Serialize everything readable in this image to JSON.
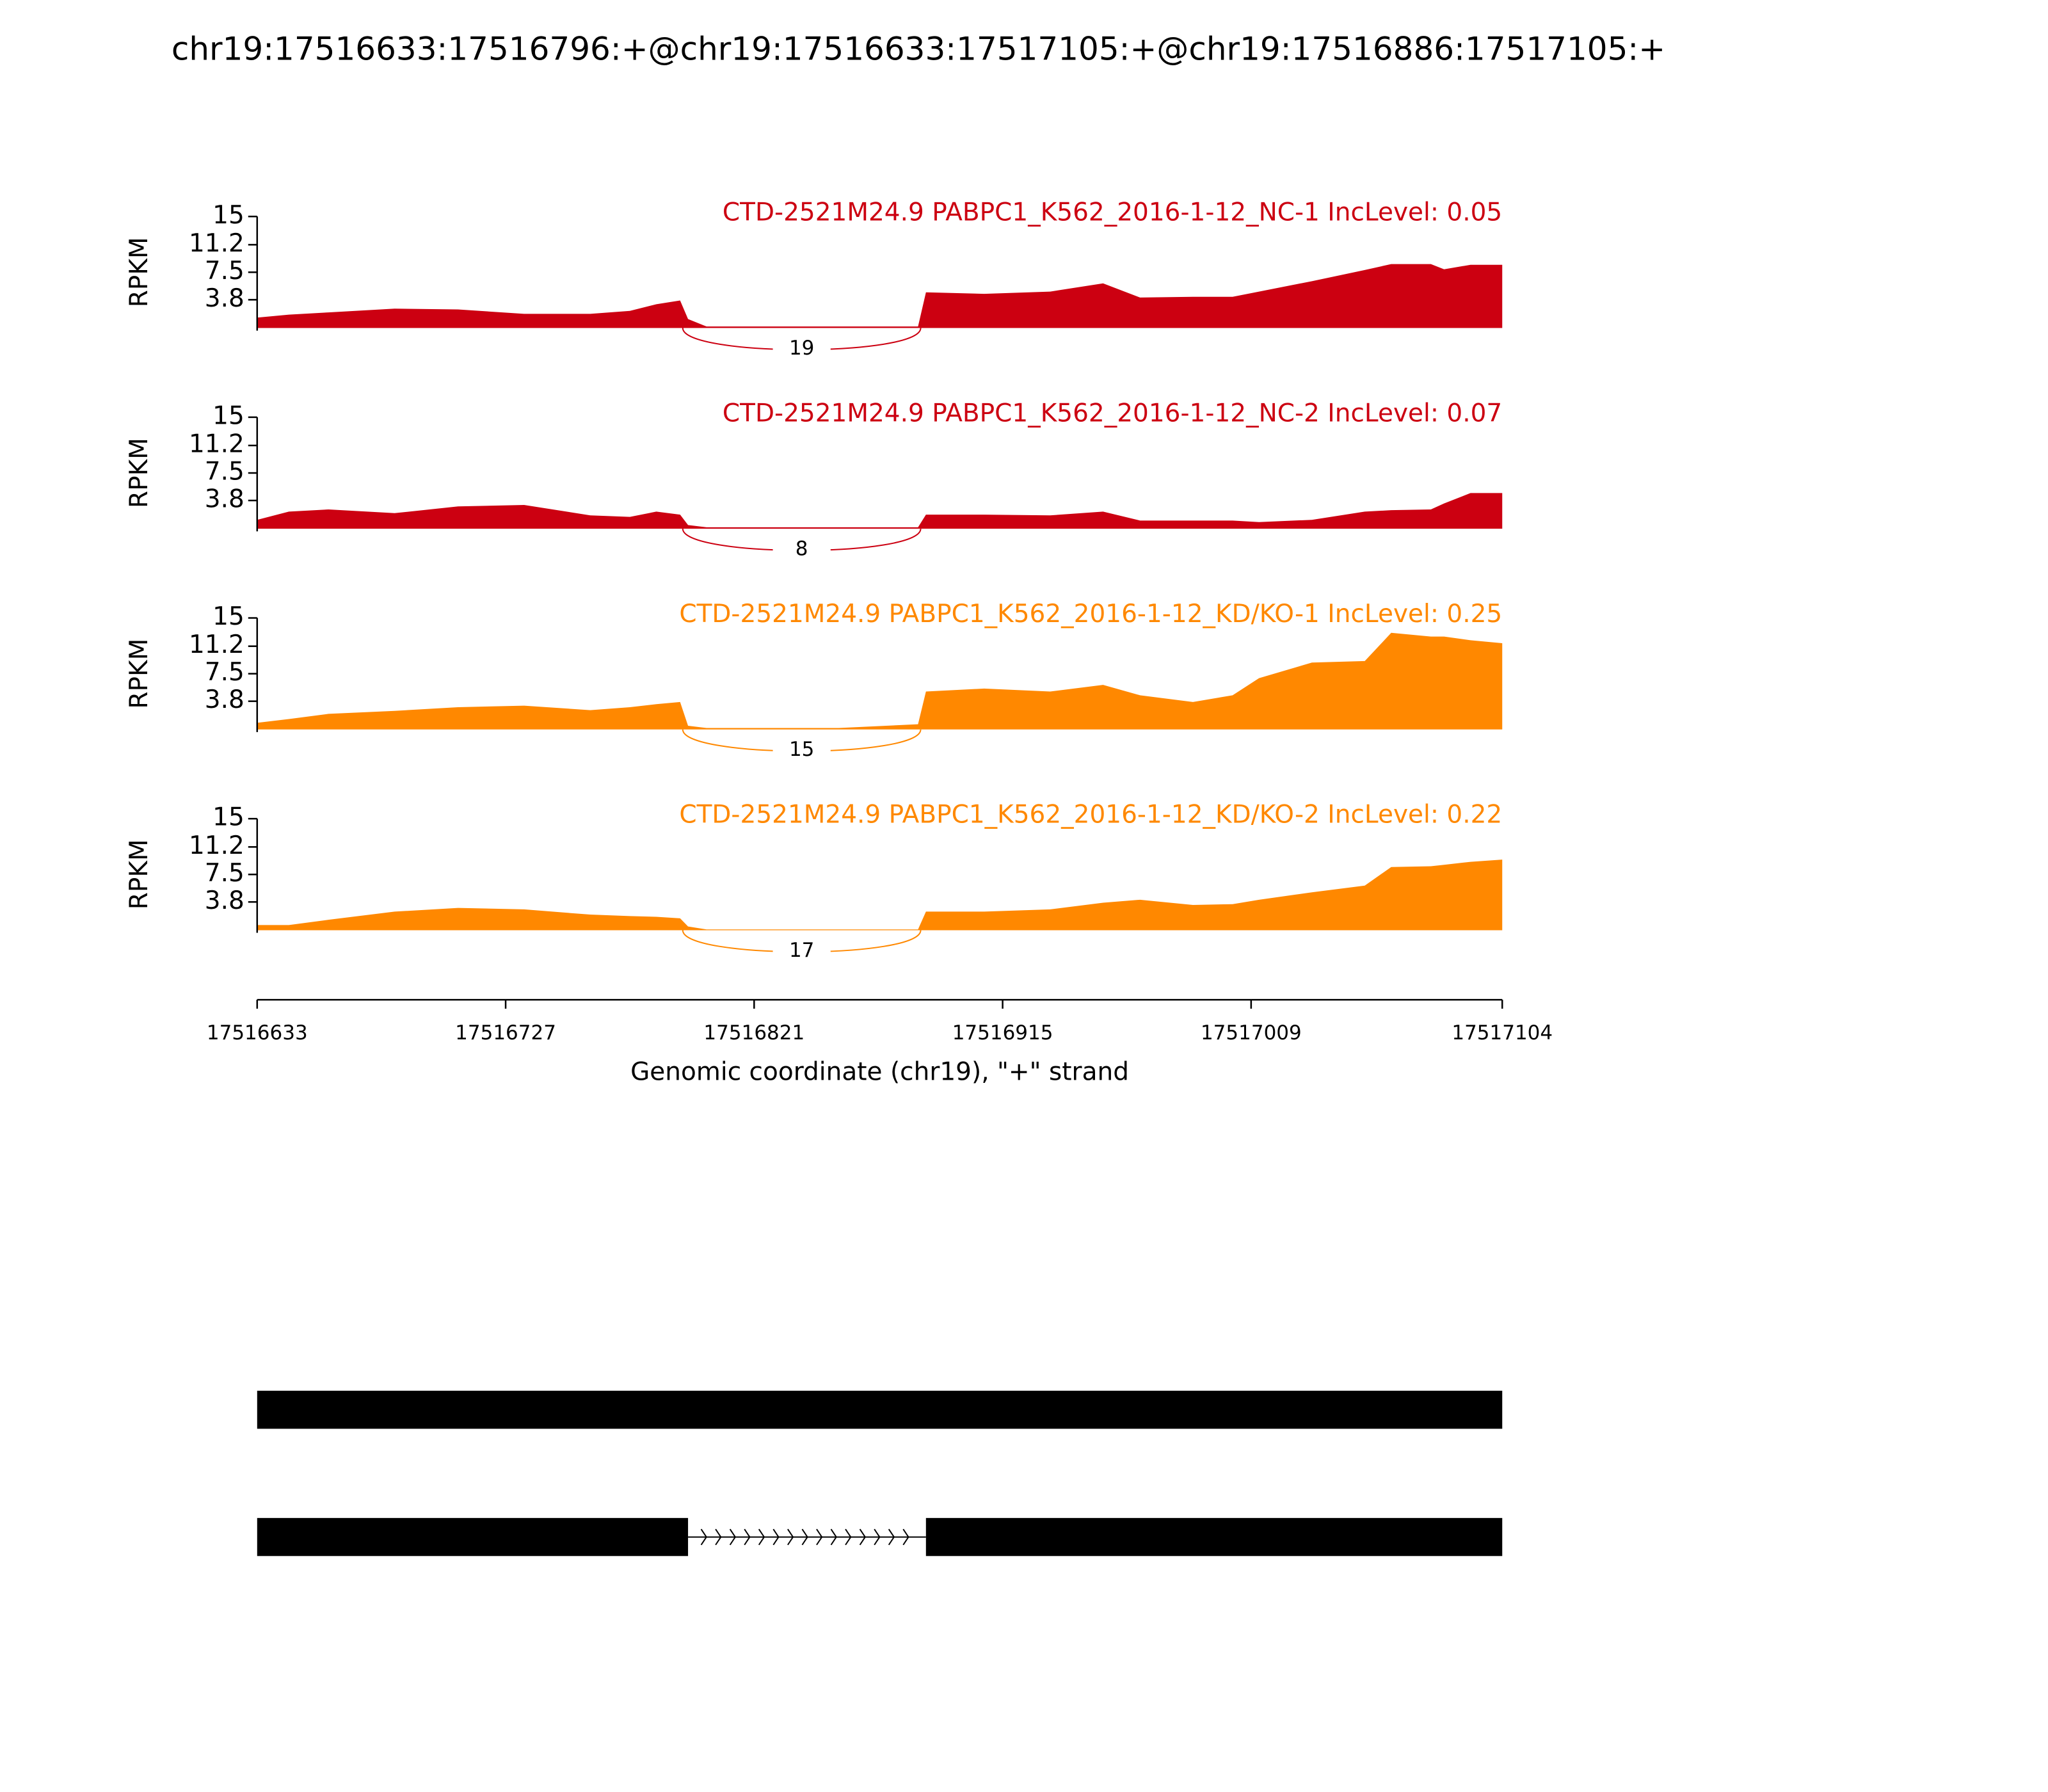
{
  "title": "chr19:17516633:17516796:+@chr19:17516633:17517105:+@chr19:17516886:17517105:+",
  "chart_data": [
    {
      "type": "area",
      "title": "CTD-2521M24.9 PABPC1_K562_2016-1-12_NC-1 IncLevel: 0.05",
      "ylabel": "RPKM",
      "color": "#cc0011",
      "x": [
        17516633,
        17516645,
        17516660,
        17516685,
        17516709,
        17516734,
        17516759,
        17516774,
        17516784,
        17516793,
        17516796,
        17516803,
        17516853,
        17516883,
        17516886,
        17516908,
        17516933,
        17516953,
        17516967,
        17516987,
        17517002,
        17517012,
        17517032,
        17517052,
        17517062,
        17517077,
        17517082,
        17517092,
        17517104
      ],
      "values": [
        1.4,
        1.8,
        2.1,
        2.6,
        2.5,
        1.9,
        1.9,
        2.3,
        3.2,
        3.7,
        1.2,
        0.2,
        0.2,
        0.2,
        4.8,
        4.6,
        4.9,
        6.0,
        4.1,
        4.2,
        4.2,
        4.9,
        6.3,
        7.8,
        8.6,
        8.6,
        7.9,
        8.5,
        8.5
      ],
      "xlim": [
        17516633,
        17517104
      ],
      "ylim": [
        0,
        15
      ],
      "yticks": [
        3.8,
        7.5,
        11.2,
        15
      ],
      "junctions": [
        {
          "start": 17516794,
          "end": 17516884,
          "count": 19
        }
      ]
    },
    {
      "type": "area",
      "title": "CTD-2521M24.9 PABPC1_K562_2016-1-12_NC-2 IncLevel: 0.07",
      "ylabel": "RPKM",
      "color": "#cc0011",
      "x": [
        17516633,
        17516645,
        17516660,
        17516685,
        17516709,
        17516734,
        17516759,
        17516774,
        17516784,
        17516793,
        17516796,
        17516803,
        17516853,
        17516883,
        17516886,
        17516908,
        17516933,
        17516953,
        17516967,
        17516987,
        17517002,
        17517012,
        17517032,
        17517052,
        17517062,
        17517077,
        17517082,
        17517092,
        17517104
      ],
      "values": [
        1.2,
        2.3,
        2.6,
        2.1,
        3.0,
        3.2,
        1.8,
        1.6,
        2.3,
        1.9,
        0.5,
        0.2,
        0.2,
        0.2,
        1.9,
        1.9,
        1.8,
        2.3,
        1.1,
        1.1,
        1.1,
        0.9,
        1.2,
        2.3,
        2.5,
        2.6,
        3.4,
        4.8,
        4.8
      ],
      "xlim": [
        17516633,
        17517104
      ],
      "ylim": [
        0,
        15
      ],
      "yticks": [
        3.8,
        7.5,
        11.2,
        15
      ],
      "junctions": [
        {
          "start": 17516794,
          "end": 17516884,
          "count": 8
        }
      ]
    },
    {
      "type": "area",
      "title": "CTD-2521M24.9 PABPC1_K562_2016-1-12_KD/KO-1 IncLevel: 0.25",
      "ylabel": "RPKM",
      "color": "#ff8800",
      "x": [
        17516633,
        17516645,
        17516660,
        17516685,
        17516709,
        17516734,
        17516759,
        17516774,
        17516784,
        17516793,
        17516796,
        17516803,
        17516853,
        17516883,
        17516886,
        17516908,
        17516933,
        17516953,
        17516967,
        17516987,
        17517002,
        17517012,
        17517032,
        17517052,
        17517062,
        17517077,
        17517082,
        17517092,
        17517104
      ],
      "values": [
        0.9,
        1.4,
        2.1,
        2.5,
        3.0,
        3.2,
        2.6,
        3.0,
        3.4,
        3.7,
        0.5,
        0.2,
        0.2,
        0.7,
        5.1,
        5.5,
        5.1,
        6.0,
        4.6,
        3.7,
        4.6,
        6.9,
        9.0,
        9.2,
        13.0,
        12.5,
        12.5,
        12.0,
        11.6
      ],
      "xlim": [
        17516633,
        17517104
      ],
      "ylim": [
        0,
        15
      ],
      "yticks": [
        3.8,
        7.5,
        11.2,
        15
      ],
      "junctions": [
        {
          "start": 17516794,
          "end": 17516884,
          "count": 15
        }
      ]
    },
    {
      "type": "area",
      "title": "CTD-2521M24.9 PABPC1_K562_2016-1-12_KD/KO-2 IncLevel: 0.22",
      "ylabel": "RPKM",
      "color": "#ff8800",
      "x": [
        17516633,
        17516645,
        17516660,
        17516685,
        17516709,
        17516734,
        17516759,
        17516774,
        17516784,
        17516793,
        17516796,
        17516803,
        17516853,
        17516883,
        17516886,
        17516908,
        17516933,
        17516953,
        17516967,
        17516987,
        17517002,
        17517012,
        17517032,
        17517052,
        17517062,
        17517077,
        17517082,
        17517092,
        17517104
      ],
      "values": [
        0.7,
        0.7,
        1.4,
        2.5,
        3.0,
        2.8,
        2.1,
        1.9,
        1.8,
        1.6,
        0.5,
        0.1,
        0.1,
        0.1,
        2.5,
        2.5,
        2.8,
        3.7,
        4.1,
        3.4,
        3.5,
        4.1,
        5.1,
        6.0,
        8.5,
        8.6,
        8.8,
        9.2,
        9.5
      ],
      "xlim": [
        17516633,
        17517104
      ],
      "ylim": [
        0,
        15
      ],
      "yticks": [
        3.8,
        7.5,
        11.2,
        15
      ],
      "xticks": [
        17516633,
        17516727,
        17516821,
        17516915,
        17517009,
        17517104
      ],
      "xlabel": "Genomic coordinate (chr19), \"+\" strand",
      "junctions": [
        {
          "start": 17516794,
          "end": 17516884,
          "count": 17
        }
      ]
    },
    {
      "type": "gene_model",
      "xlim": [
        17516633,
        17517104
      ],
      "transcripts": [
        {
          "exons": [
            [
              17516633,
              17517104
            ]
          ]
        },
        {
          "exons": [
            [
              17516633,
              17516796
            ],
            [
              17516886,
              17517104
            ]
          ]
        }
      ]
    }
  ]
}
